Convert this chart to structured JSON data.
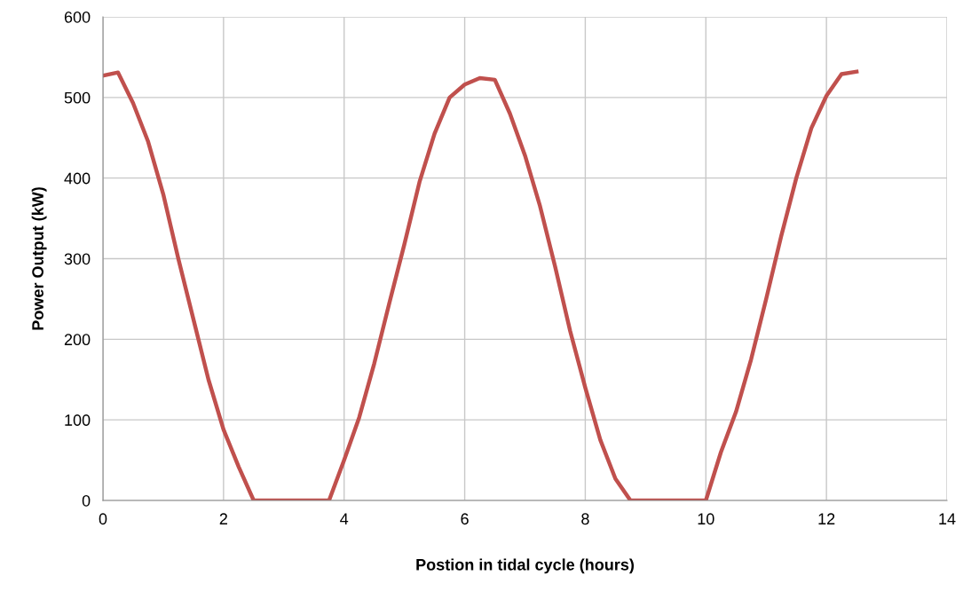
{
  "chart_data": {
    "type": "line",
    "xlabel": "Postion in tidal cycle (hours)",
    "ylabel": "Power Output (kW)",
    "x": [
      0,
      0.25,
      0.5,
      0.75,
      1,
      1.25,
      1.5,
      1.75,
      2,
      2.25,
      2.5,
      2.75,
      3,
      3.25,
      3.5,
      3.75,
      4,
      4.25,
      4.5,
      4.75,
      5,
      5.25,
      5.5,
      5.75,
      6,
      6.25,
      6.5,
      6.75,
      7,
      7.25,
      7.5,
      7.75,
      8,
      8.25,
      8.5,
      8.75,
      9,
      9.25,
      9.5,
      9.75,
      10,
      10.25,
      10.5,
      10.75,
      11,
      11.25,
      11.5,
      11.75,
      12,
      12.25,
      12.5
    ],
    "series": [
      {
        "color": "#c0504d",
        "values": [
          527,
          531,
          493,
          445,
          380,
          300,
          225,
          150,
          88,
          42,
          0,
          0,
          0,
          0,
          0,
          0,
          50,
          103,
          170,
          245,
          318,
          395,
          455,
          500,
          516,
          524,
          522,
          480,
          428,
          365,
          290,
          210,
          140,
          75,
          27,
          0,
          0,
          0,
          0,
          0,
          0,
          60,
          110,
          175,
          250,
          328,
          400,
          462,
          502,
          529,
          532
        ]
      }
    ],
    "xlim": [
      0,
      14
    ],
    "xticks": [
      0,
      2,
      4,
      6,
      8,
      10,
      12,
      14
    ],
    "ylim": [
      0,
      600
    ],
    "yticks": [
      0,
      100,
      200,
      300,
      400,
      500,
      600
    ],
    "grid": true,
    "marker": "none",
    "line_style": "solid"
  }
}
